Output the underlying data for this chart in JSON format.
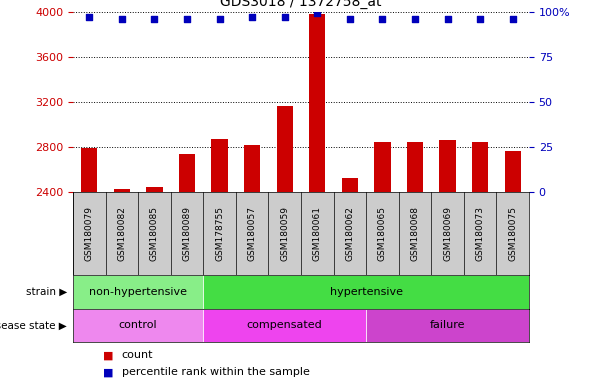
{
  "title": "GDS3018 / 1372758_at",
  "samples": [
    "GSM180079",
    "GSM180082",
    "GSM180085",
    "GSM180089",
    "GSM178755",
    "GSM180057",
    "GSM180059",
    "GSM180061",
    "GSM180062",
    "GSM180065",
    "GSM180068",
    "GSM180069",
    "GSM180073",
    "GSM180075"
  ],
  "counts": [
    2790,
    2430,
    2445,
    2740,
    2870,
    2820,
    3160,
    3980,
    2520,
    2840,
    2840,
    2860,
    2840,
    2760
  ],
  "percentile_ranks": [
    97,
    96,
    96,
    96,
    96,
    97,
    97,
    99,
    96,
    96,
    96,
    96,
    96,
    96
  ],
  "ylim_left": [
    2400,
    4000
  ],
  "ylim_right": [
    0,
    100
  ],
  "yticks_left": [
    2400,
    2800,
    3200,
    3600,
    4000
  ],
  "yticks_right": [
    0,
    25,
    50,
    75,
    100
  ],
  "strain_groups": [
    {
      "label": "non-hypertensive",
      "start": 0,
      "end": 4,
      "color": "#88EE88"
    },
    {
      "label": "hypertensive",
      "start": 4,
      "end": 14,
      "color": "#44DD44"
    }
  ],
  "disease_groups": [
    {
      "label": "control",
      "start": 0,
      "end": 4,
      "color": "#EE88EE"
    },
    {
      "label": "compensated",
      "start": 4,
      "end": 9,
      "color": "#EE44EE"
    },
    {
      "label": "failure",
      "start": 9,
      "end": 14,
      "color": "#CC44CC"
    }
  ],
  "bar_color": "#CC0000",
  "dot_color": "#0000BB",
  "left_axis_color": "#CC0000",
  "right_axis_color": "#0000BB",
  "tick_bg_color": "#CCCCCC",
  "plot_bg_color": "#FFFFFF"
}
